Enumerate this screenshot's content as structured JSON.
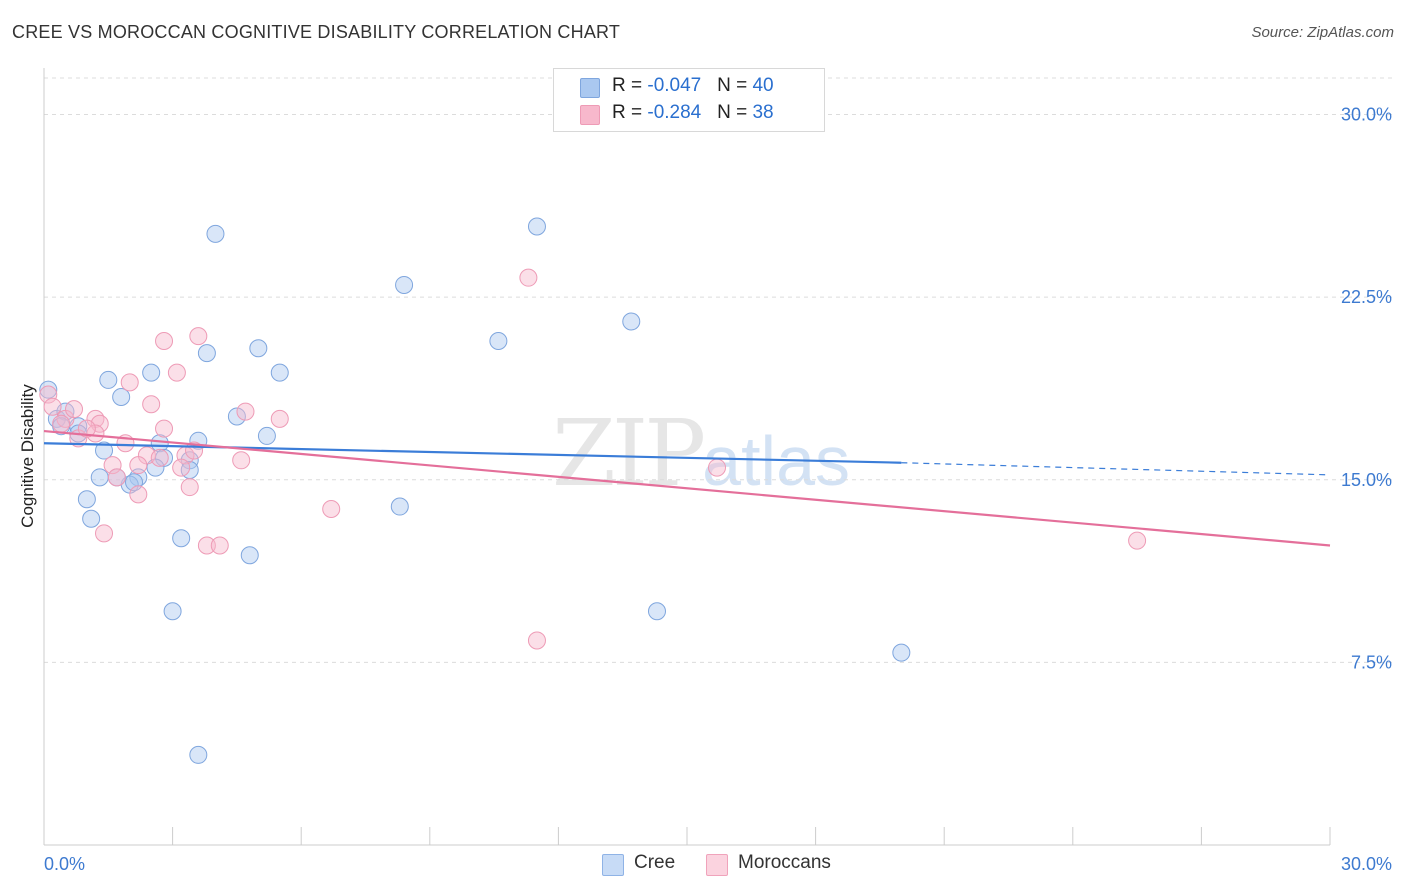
{
  "header": {
    "title": "CREE VS MOROCCAN COGNITIVE DISABILITY CORRELATION CHART",
    "source": "Source: ZipAtlas.com"
  },
  "watermark": {
    "zip": "ZIP",
    "atlas": "atlas"
  },
  "legend": {
    "rows": [
      {
        "r_label": "R = ",
        "r_value": "-0.047",
        "n_label": "N = ",
        "n_value": "40",
        "color": "#aac8f0"
      },
      {
        "r_label": "R = ",
        "r_value": "-0.284",
        "n_label": "N = ",
        "n_value": "38",
        "color": "#f7b8cc"
      }
    ]
  },
  "bottom_legend": {
    "cree": "Cree",
    "moroccans": "Moroccans"
  },
  "chart_data": {
    "type": "scatter",
    "title": "CREE VS MOROCCAN COGNITIVE DISABILITY CORRELATION CHART",
    "xlabel": "",
    "ylabel": "Cognitive Disability",
    "xlim": [
      0,
      30
    ],
    "ylim": [
      0,
      31.5
    ],
    "x_tick_labels": [
      "0.0%",
      "30.0%"
    ],
    "y_ticks": [
      7.5,
      15.0,
      22.5,
      30.0
    ],
    "y_tick_labels": [
      "7.5%",
      "15.0%",
      "22.5%",
      "30.0%"
    ],
    "grid": true,
    "colors": {
      "cree": "#3b7dd8",
      "moroccans": "#e46f9a"
    },
    "series": [
      {
        "name": "Cree",
        "points": [
          [
            0.1,
            18.7
          ],
          [
            0.3,
            17.5
          ],
          [
            0.5,
            17.8
          ],
          [
            0.4,
            17.2
          ],
          [
            0.8,
            17.2
          ],
          [
            1.5,
            19.1
          ],
          [
            1.8,
            18.4
          ],
          [
            2.5,
            19.4
          ],
          [
            3.8,
            20.2
          ],
          [
            5.0,
            20.4
          ],
          [
            5.5,
            19.4
          ],
          [
            4.0,
            25.1
          ],
          [
            8.4,
            23.0
          ],
          [
            11.5,
            25.4
          ],
          [
            10.6,
            20.7
          ],
          [
            13.7,
            21.5
          ],
          [
            1.4,
            16.2
          ],
          [
            1.3,
            15.1
          ],
          [
            2.2,
            15.1
          ],
          [
            2.7,
            16.5
          ],
          [
            2.8,
            15.9
          ],
          [
            3.4,
            15.8
          ],
          [
            3.6,
            16.6
          ],
          [
            4.5,
            17.6
          ],
          [
            5.2,
            16.8
          ],
          [
            1.0,
            14.2
          ],
          [
            1.1,
            13.4
          ],
          [
            2.0,
            14.8
          ],
          [
            2.1,
            14.9
          ],
          [
            3.2,
            12.6
          ],
          [
            4.8,
            11.9
          ],
          [
            8.3,
            13.9
          ],
          [
            3.0,
            9.6
          ],
          [
            14.3,
            9.6
          ],
          [
            20.0,
            7.9
          ],
          [
            3.6,
            3.7
          ],
          [
            2.6,
            15.5
          ],
          [
            3.4,
            15.4
          ],
          [
            1.7,
            15.1
          ],
          [
            0.8,
            16.9
          ]
        ],
        "trend": {
          "x": [
            0,
            20.0
          ],
          "y": [
            16.5,
            15.7
          ],
          "dashed_extension": {
            "x": [
              20.0,
              30.0
            ],
            "y": [
              15.7,
              15.2
            ]
          }
        }
      },
      {
        "name": "Moroccans",
        "points": [
          [
            0.1,
            18.5
          ],
          [
            0.2,
            18.0
          ],
          [
            0.5,
            17.5
          ],
          [
            0.7,
            17.9
          ],
          [
            0.8,
            16.7
          ],
          [
            1.2,
            17.5
          ],
          [
            1.3,
            17.3
          ],
          [
            1.2,
            16.9
          ],
          [
            2.0,
            19.0
          ],
          [
            2.5,
            18.1
          ],
          [
            2.8,
            20.7
          ],
          [
            3.1,
            19.4
          ],
          [
            3.6,
            20.9
          ],
          [
            2.8,
            17.1
          ],
          [
            4.7,
            17.8
          ],
          [
            5.5,
            17.5
          ],
          [
            1.9,
            16.5
          ],
          [
            2.4,
            16.0
          ],
          [
            2.2,
            15.6
          ],
          [
            1.6,
            15.6
          ],
          [
            1.7,
            15.1
          ],
          [
            3.3,
            16.0
          ],
          [
            3.2,
            15.5
          ],
          [
            4.6,
            15.8
          ],
          [
            3.4,
            14.7
          ],
          [
            2.2,
            14.4
          ],
          [
            1.4,
            12.8
          ],
          [
            3.8,
            12.3
          ],
          [
            4.1,
            12.3
          ],
          [
            6.7,
            13.8
          ],
          [
            11.3,
            23.3
          ],
          [
            15.7,
            15.5
          ],
          [
            25.5,
            12.5
          ],
          [
            11.5,
            8.4
          ],
          [
            0.4,
            17.3
          ],
          [
            1.0,
            17.1
          ],
          [
            2.7,
            15.9
          ],
          [
            3.5,
            16.2
          ]
        ],
        "trend": {
          "x": [
            0,
            30.0
          ],
          "y": [
            17.0,
            12.3
          ]
        }
      }
    ]
  }
}
